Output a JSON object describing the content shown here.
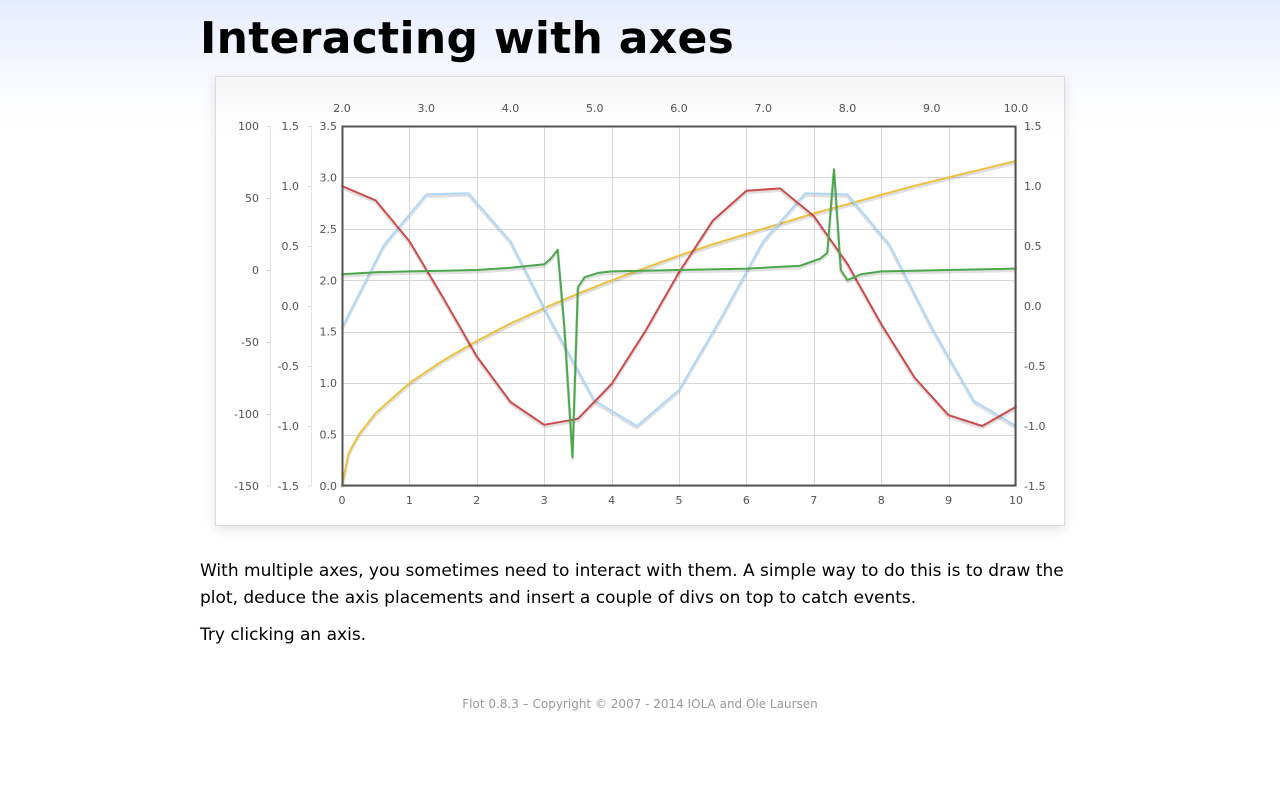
{
  "page": {
    "title": "Interacting with axes",
    "paragraphs": [
      "With multiple axes, you sometimes need to interact with them. A simple way to do this is to draw the plot, deduce the axis placements and insert a couple of divs on top to catch events.",
      "Try clicking an axis."
    ],
    "footer": "Flot 0.8.3 – Copyright © 2007 - 2014 IOLA and Ole Laursen"
  },
  "chart_data": {
    "type": "line",
    "grid": true,
    "axes": {
      "xaxis1": {
        "position": "bottom",
        "range": [
          0,
          10
        ],
        "ticks": [
          "0",
          "1",
          "2",
          "3",
          "4",
          "5",
          "6",
          "7",
          "8",
          "9",
          "10"
        ]
      },
      "xaxis2": {
        "position": "top",
        "range": [
          2,
          10
        ],
        "ticks": [
          "2.0",
          "3.0",
          "4.0",
          "5.0",
          "6.0",
          "7.0",
          "8.0",
          "9.0",
          "10.0"
        ]
      },
      "yaxis1": {
        "position": "left",
        "range": [
          0,
          3.5
        ],
        "ticks": [
          "0.0",
          "0.5",
          "1.0",
          "1.5",
          "2.0",
          "2.5",
          "3.0",
          "3.5"
        ]
      },
      "yaxis2": {
        "position": "left",
        "range": [
          -1.5,
          1.5
        ],
        "ticks": [
          "-1.5",
          "-1.0",
          "-0.5",
          "0.0",
          "0.5",
          "1.0",
          "1.5"
        ]
      },
      "yaxis3": {
        "position": "left",
        "range": [
          -150,
          100
        ],
        "ticks": [
          "-150",
          "-100",
          "-50",
          "0",
          "50",
          "100"
        ]
      },
      "yaxis4": {
        "position": "right",
        "range": [
          -1.5,
          1.5
        ],
        "ticks": [
          "-1.5",
          "-1.0",
          "-0.5",
          "0.0",
          "0.5",
          "1.0",
          "1.5"
        ]
      }
    },
    "series": [
      {
        "color": "#edc240",
        "xaxis": "xaxis1",
        "yaxis": "yaxis1",
        "x": [
          0,
          0.1,
          0.25,
          0.5,
          1,
          1.5,
          2,
          2.5,
          3,
          3.5,
          4,
          4.5,
          5,
          5.5,
          6,
          6.5,
          7,
          7.5,
          8,
          8.5,
          9,
          9.5,
          10
        ],
        "y": [
          0,
          0.32,
          0.5,
          0.71,
          1.0,
          1.22,
          1.41,
          1.58,
          1.73,
          1.87,
          2.0,
          2.12,
          2.24,
          2.35,
          2.45,
          2.55,
          2.65,
          2.74,
          2.83,
          2.92,
          3.0,
          3.08,
          3.16
        ]
      },
      {
        "color": "#afd8f8",
        "xaxis": "xaxis2",
        "yaxis": "yaxis4",
        "x": [
          2,
          2.5,
          3,
          3.5,
          4,
          4.5,
          5,
          5.5,
          6,
          6.5,
          7,
          7.5,
          8,
          8.5,
          9,
          9.5,
          10
        ],
        "y": [
          -0.18,
          0.51,
          0.93,
          0.94,
          0.54,
          -0.15,
          -0.79,
          -1.0,
          -0.7,
          -0.1,
          0.54,
          0.94,
          0.93,
          0.51,
          -0.18,
          -0.79,
          -1.0
        ]
      },
      {
        "color": "#cb4b4b",
        "xaxis": "xaxis1",
        "yaxis": "yaxis2",
        "x": [
          0,
          0.5,
          1,
          1.5,
          2,
          2.5,
          3,
          3.5,
          4,
          4.5,
          5,
          5.5,
          6,
          6.5,
          7,
          7.5,
          8,
          8.5,
          9,
          9.5,
          10
        ],
        "y": [
          1.0,
          0.88,
          0.54,
          0.07,
          -0.42,
          -0.8,
          -0.99,
          -0.94,
          -0.65,
          -0.21,
          0.28,
          0.71,
          0.96,
          0.98,
          0.75,
          0.35,
          -0.15,
          -0.6,
          -0.91,
          -1.0,
          -0.84
        ]
      },
      {
        "color": "#4da74d",
        "xaxis": "xaxis1",
        "yaxis": "yaxis3",
        "x": [
          0,
          0.5,
          1,
          1.5,
          2,
          2.5,
          3,
          3.1,
          3.2,
          3.3,
          3.42,
          3.5,
          3.6,
          3.8,
          4,
          5,
          6,
          6.8,
          7.1,
          7.2,
          7.3,
          7.4,
          7.5,
          7.7,
          8,
          9,
          10
        ],
        "y": [
          -3,
          -1.5,
          -1,
          -0.5,
          0,
          1.5,
          4,
          8,
          14,
          -40,
          -130,
          -12,
          -5,
          -2,
          -1,
          0,
          1,
          3,
          8,
          12,
          70,
          0,
          -7,
          -3,
          -1,
          0,
          1
        ]
      }
    ]
  }
}
